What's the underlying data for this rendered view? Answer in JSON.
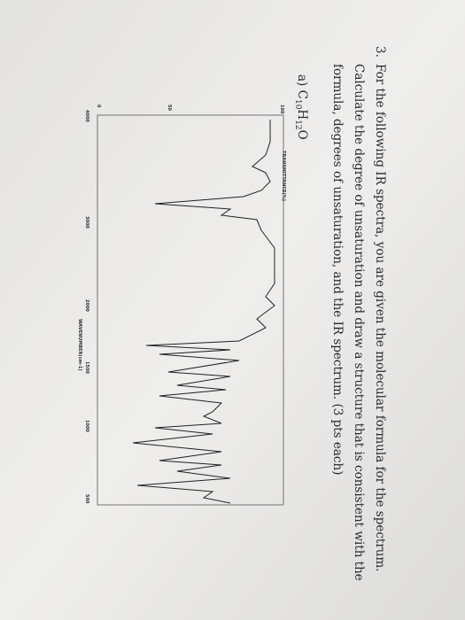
{
  "question": {
    "number": "3.",
    "lines": [
      "For the following IR spectra, you are given the molecular formula for the spectrum.",
      "Calculate the degree of unsaturation and draw a structure that is consistent with the",
      "formula, degrees of unsaturation, and the IR spectrum. (3 pts each)"
    ]
  },
  "part": {
    "label": "a)",
    "formula": [
      "C",
      "10",
      "H",
      "12",
      "O"
    ]
  },
  "spectrum": {
    "y_title": "TRANSMITTANCE(%)",
    "y_ticks": [
      "100",
      "50",
      "0"
    ],
    "x_title": "WAVENUMBER(cm-1)",
    "x_ticks": [
      "4000",
      "3000",
      "2000",
      "1500",
      "1000",
      "500"
    ]
  }
}
